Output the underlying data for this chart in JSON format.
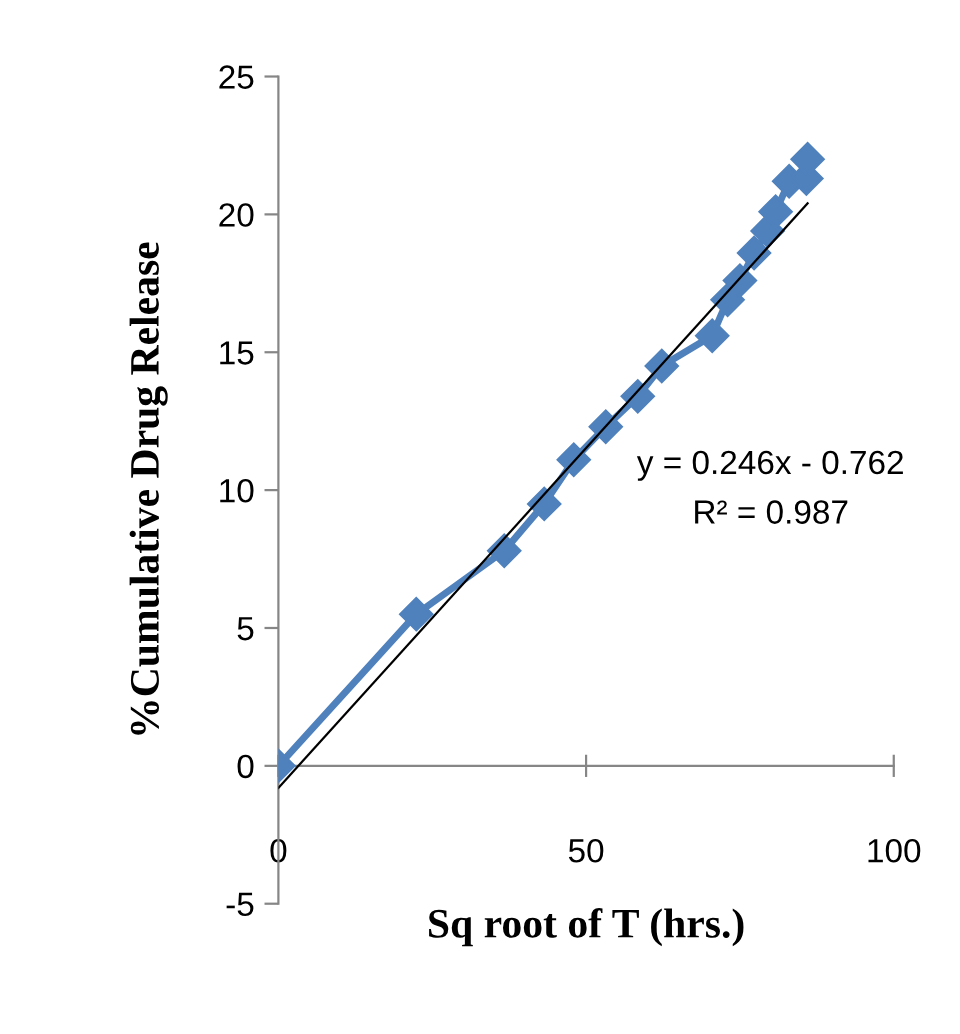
{
  "chart_data": {
    "type": "line",
    "xlabel": "Sq root of T (hrs.)",
    "ylabel": "%Cumulative Drug Release",
    "xlim": [
      0,
      100
    ],
    "xticks": [
      0,
      50,
      100
    ],
    "ylim": [
      -5,
      25
    ],
    "yticks": [
      -5,
      0,
      5,
      10,
      15,
      20,
      25
    ],
    "grid": false,
    "legend": false,
    "marker": "diamond",
    "line_style": "solid",
    "series": [
      {
        "color": "#4f81bd",
        "x": [
          0,
          22.4,
          36.7,
          43.2,
          48,
          53.2,
          58.4,
          62.3,
          70.5,
          73,
          75,
          77.3,
          79.5,
          80.8,
          83,
          85.8,
          86
        ],
        "values": [
          0,
          5.5,
          7.8,
          9.5,
          11.1,
          12.3,
          13.4,
          14.5,
          15.6,
          16.9,
          17.6,
          18.6,
          19.4,
          20.1,
          21.2,
          21.3,
          22.0
        ]
      },
      {
        "type": "line",
        "marker": "none",
        "color": "#000000",
        "x": [
          0,
          86
        ],
        "values": [
          -0.8,
          20.4
        ]
      }
    ],
    "annotations": [
      "y = 0.246x - 0.762",
      "R² = 0.987"
    ]
  }
}
